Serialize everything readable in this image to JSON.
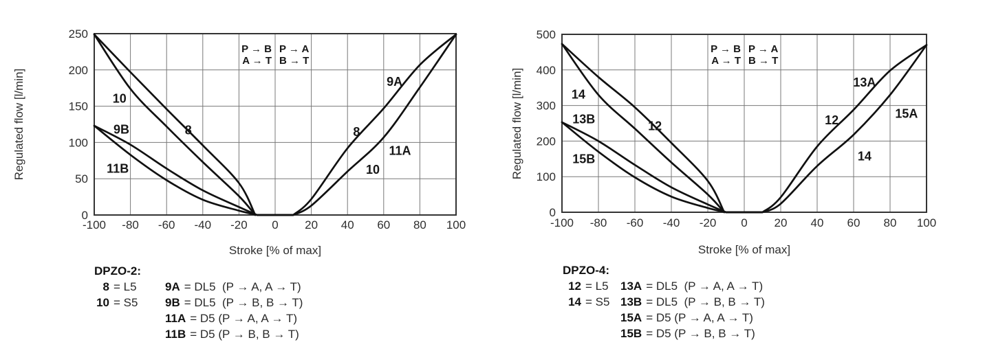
{
  "colors": {
    "curve": "#111111",
    "grid": "#787878",
    "frame": "#333333",
    "tick_text": "#2e2e2e"
  },
  "chart_data": [
    {
      "type": "line",
      "title": "DPZO-2:",
      "xlabel": "Stroke [% of max]",
      "ylabel": "Regulated flow [l/min]",
      "xlim": [
        -100,
        100
      ],
      "ylim": [
        0,
        250
      ],
      "x_ticks": [
        -100,
        -80,
        -60,
        -40,
        -20,
        0,
        20,
        40,
        60,
        80,
        100
      ],
      "y_ticks": [
        0,
        50,
        100,
        150,
        200,
        250
      ],
      "grid": true,
      "flow_note": {
        "left": [
          "P → B",
          "A → T"
        ],
        "right": [
          "P → A",
          "B → T"
        ]
      },
      "series": [
        {
          "name": "8",
          "spool": "L5",
          "points": [
            [
              -100,
              249
            ],
            [
              -80,
              197
            ],
            [
              -60,
              146
            ],
            [
              -40,
              96
            ],
            [
              -20,
              44
            ],
            [
              -11,
              0
            ]
          ]
        },
        {
          "name": "10",
          "spool": "S5",
          "points": [
            [
              -100,
              249
            ],
            [
              -80,
              174
            ],
            [
              -60,
              122
            ],
            [
              -40,
              73
            ],
            [
              -20,
              26
            ],
            [
              -11,
              0
            ]
          ]
        },
        {
          "name": "9B",
          "spool": "DL5",
          "points": [
            [
              -100,
              123
            ],
            [
              -80,
              97
            ],
            [
              -60,
              64
            ],
            [
              -40,
              34
            ],
            [
              -20,
              11
            ],
            [
              -10,
              0
            ]
          ]
        },
        {
          "name": "11B",
          "spool": "D5",
          "points": [
            [
              -100,
              123
            ],
            [
              -80,
              83
            ],
            [
              -60,
              48
            ],
            [
              -40,
              21
            ],
            [
              -20,
              6
            ],
            [
              -10,
              0
            ]
          ]
        },
        {
          "name": "8 / 9A",
          "spool": "L5 / DL5",
          "points": [
            [
              10,
              0
            ],
            [
              20,
              22
            ],
            [
              40,
              92
            ],
            [
              60,
              147
            ],
            [
              80,
              207
            ],
            [
              100,
              249
            ]
          ]
        },
        {
          "name": "10 / 11A",
          "spool": "S5 / D5",
          "points": [
            [
              10,
              0
            ],
            [
              20,
              13
            ],
            [
              40,
              60
            ],
            [
              60,
              107
            ],
            [
              80,
              176
            ],
            [
              100,
              249
            ]
          ]
        }
      ],
      "curve_labels": [
        {
          "text": "10",
          "x": -86,
          "y": 161
        },
        {
          "text": "9B",
          "x": -85,
          "y": 118
        },
        {
          "text": "11B",
          "x": -87,
          "y": 64
        },
        {
          "text": "8",
          "x": -48,
          "y": 117
        },
        {
          "text": "8",
          "x": 45,
          "y": 115
        },
        {
          "text": "9A",
          "x": 66,
          "y": 184
        },
        {
          "text": "11A",
          "x": 69,
          "y": 89
        },
        {
          "text": "10",
          "x": 54,
          "y": 63
        }
      ],
      "legend_rows": [
        {
          "code1": "8",
          "text1": "= L5",
          "code2": "9A",
          "text2": "= DL5  (P → A, A → T)"
        },
        {
          "code1": "10",
          "text1": "= S5",
          "code2": "9B",
          "text2": "= DL5  (P → B, B → T)"
        },
        {
          "code1": "",
          "text1": "",
          "code2": "11A",
          "text2": "= D5 (P → A, A → T)"
        },
        {
          "code1": "",
          "text1": "",
          "code2": "11B",
          "text2": "= D5 (P → B, B → T)"
        }
      ]
    },
    {
      "type": "line",
      "title": "DPZO-4:",
      "xlabel": "Stroke [% of max]",
      "ylabel": "Regulated flow [l/min]",
      "xlim": [
        -100,
        100
      ],
      "ylim": [
        0,
        500
      ],
      "x_ticks": [
        -100,
        -80,
        -60,
        -40,
        -20,
        0,
        20,
        40,
        60,
        80,
        100
      ],
      "y_ticks": [
        0,
        100,
        200,
        300,
        400,
        500
      ],
      "grid": true,
      "flow_note": {
        "left": [
          "P → B",
          "A → T"
        ],
        "right": [
          "P → A",
          "B → T"
        ]
      },
      "series": [
        {
          "name": "12",
          "spool": "L5",
          "points": [
            [
              -100,
              473
            ],
            [
              -80,
              380
            ],
            [
              -60,
              295
            ],
            [
              -40,
              195
            ],
            [
              -20,
              88
            ],
            [
              -11,
              0
            ]
          ]
        },
        {
          "name": "14",
          "spool": "S5",
          "points": [
            [
              -100,
              473
            ],
            [
              -80,
              330
            ],
            [
              -60,
              235
            ],
            [
              -40,
              140
            ],
            [
              -20,
              50
            ],
            [
              -11,
              0
            ]
          ]
        },
        {
          "name": "13B",
          "spool": "DL5",
          "points": [
            [
              -100,
              253
            ],
            [
              -80,
              200
            ],
            [
              -60,
              133
            ],
            [
              -40,
              70
            ],
            [
              -20,
              22
            ],
            [
              -10,
              0
            ]
          ]
        },
        {
          "name": "15B",
          "spool": "D5",
          "points": [
            [
              -100,
              253
            ],
            [
              -80,
              170
            ],
            [
              -60,
              98
            ],
            [
              -40,
              44
            ],
            [
              -20,
              12
            ],
            [
              -10,
              0
            ]
          ]
        },
        {
          "name": "12 / 13A",
          "spool": "L5 / DL5",
          "points": [
            [
              10,
              0
            ],
            [
              20,
              42
            ],
            [
              40,
              185
            ],
            [
              60,
              288
            ],
            [
              80,
              398
            ],
            [
              100,
              470
            ]
          ]
        },
        {
          "name": "14 / 15A",
          "spool": "S5 / D5",
          "points": [
            [
              10,
              0
            ],
            [
              20,
              24
            ],
            [
              40,
              130
            ],
            [
              60,
              218
            ],
            [
              80,
              330
            ],
            [
              100,
              470
            ]
          ]
        }
      ],
      "curve_labels": [
        {
          "text": "14",
          "x": -91,
          "y": 332
        },
        {
          "text": "13B",
          "x": -88,
          "y": 262
        },
        {
          "text": "15B",
          "x": -88,
          "y": 150
        },
        {
          "text": "12",
          "x": -49,
          "y": 243
        },
        {
          "text": "12",
          "x": 48,
          "y": 259
        },
        {
          "text": "13A",
          "x": 66,
          "y": 365
        },
        {
          "text": "15A",
          "x": 89,
          "y": 278
        },
        {
          "text": "14",
          "x": 66,
          "y": 158
        }
      ],
      "legend_rows": [
        {
          "code1": "12",
          "text1": "= L5",
          "code2": "13A",
          "text2": "= DL5  (P → A, A → T)"
        },
        {
          "code1": "14",
          "text1": "= S5",
          "code2": "13B",
          "text2": "= DL5  (P → B, B → T)"
        },
        {
          "code1": "",
          "text1": "",
          "code2": "15A",
          "text2": "= D5 (P → A, A → T)"
        },
        {
          "code1": "",
          "text1": "",
          "code2": "15B",
          "text2": "= D5 (P → B, B → T)"
        }
      ]
    }
  ]
}
